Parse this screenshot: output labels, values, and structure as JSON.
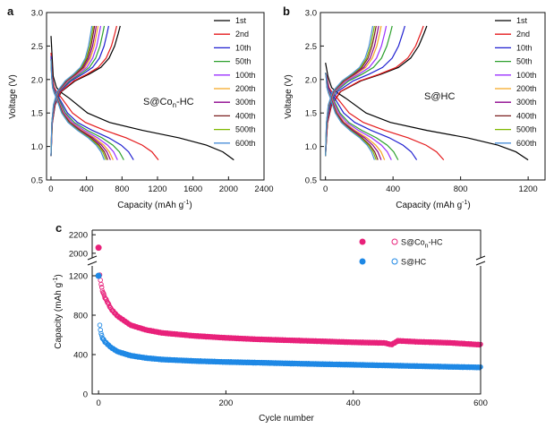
{
  "chart_data": [
    {
      "panel": "a",
      "type": "line",
      "annotation": "S@Co",
      "annotation_sub": "n",
      "annotation_tail": "-HC",
      "xlabel": "Capacity (mAh g",
      "xlabel_sup": "-1",
      "xlabel_tail": ")",
      "ylabel": "Voltage (V)",
      "xlim": [
        -50,
        2400
      ],
      "ylim": [
        0.5,
        3.0
      ],
      "xticks": [
        0,
        400,
        800,
        1200,
        1600,
        2000,
        2400
      ],
      "yticks": [
        0.5,
        1.0,
        1.5,
        2.0,
        2.5,
        3.0
      ],
      "series": [
        {
          "name": "1st",
          "color": "#000000",
          "discharge_capacity": 2060,
          "charge_capacity": 780,
          "initial_voltage": 2.65
        },
        {
          "name": "2nd",
          "color": "#e41a1c",
          "discharge_capacity": 1210,
          "charge_capacity": 740,
          "initial_voltage": 2.4
        },
        {
          "name": "10th",
          "color": "#1f1fd0",
          "discharge_capacity": 930,
          "charge_capacity": 650,
          "initial_voltage": 2.35
        },
        {
          "name": "50th",
          "color": "#2ca02c",
          "discharge_capacity": 820,
          "charge_capacity": 600,
          "initial_voltage": 2.3
        },
        {
          "name": "100th",
          "color": "#9b30ff",
          "discharge_capacity": 750,
          "charge_capacity": 560,
          "initial_voltage": 2.3
        },
        {
          "name": "200th",
          "color": "#f5a623",
          "discharge_capacity": 700,
          "charge_capacity": 530,
          "initial_voltage": 2.3
        },
        {
          "name": "300th",
          "color": "#8b008b",
          "discharge_capacity": 670,
          "charge_capacity": 510,
          "initial_voltage": 2.3
        },
        {
          "name": "400th",
          "color": "#7a1f1f",
          "discharge_capacity": 640,
          "charge_capacity": 490,
          "initial_voltage": 2.3
        },
        {
          "name": "500th",
          "color": "#7fb800",
          "discharge_capacity": 620,
          "charge_capacity": 475,
          "initial_voltage": 2.3
        },
        {
          "name": "600th",
          "color": "#4a8fd8",
          "discharge_capacity": 600,
          "charge_capacity": 460,
          "initial_voltage": 2.3
        }
      ]
    },
    {
      "panel": "b",
      "type": "line",
      "annotation": "S@HC",
      "xlabel": "Capacity (mAh g",
      "xlabel_sup": "-1",
      "xlabel_tail": ")",
      "ylabel": "Voltage (V)",
      "xlim": [
        -30,
        1300
      ],
      "ylim": [
        0.5,
        3.0
      ],
      "xticks": [
        0,
        400,
        800,
        1200
      ],
      "yticks": [
        0.5,
        1.0,
        1.5,
        2.0,
        2.5,
        3.0
      ],
      "series": [
        {
          "name": "1st",
          "color": "#000000",
          "discharge_capacity": 1200,
          "charge_capacity": 600,
          "initial_voltage": 2.25
        },
        {
          "name": "2nd",
          "color": "#e41a1c",
          "discharge_capacity": 700,
          "charge_capacity": 580,
          "initial_voltage": 2.1
        },
        {
          "name": "10th",
          "color": "#1f1fd0",
          "discharge_capacity": 540,
          "charge_capacity": 470,
          "initial_voltage": 2.1
        },
        {
          "name": "50th",
          "color": "#2ca02c",
          "discharge_capacity": 430,
          "charge_capacity": 395,
          "initial_voltage": 2.1
        },
        {
          "name": "100th",
          "color": "#9b30ff",
          "discharge_capacity": 390,
          "charge_capacity": 360,
          "initial_voltage": 2.1
        },
        {
          "name": "200th",
          "color": "#f5a623",
          "discharge_capacity": 350,
          "charge_capacity": 330,
          "initial_voltage": 2.1
        },
        {
          "name": "300th",
          "color": "#8b008b",
          "discharge_capacity": 330,
          "charge_capacity": 315,
          "initial_voltage": 2.1
        },
        {
          "name": "400th",
          "color": "#7a1f1f",
          "discharge_capacity": 310,
          "charge_capacity": 300,
          "initial_voltage": 2.1
        },
        {
          "name": "500th",
          "color": "#7fb800",
          "discharge_capacity": 300,
          "charge_capacity": 290,
          "initial_voltage": 2.1
        },
        {
          "name": "600th",
          "color": "#4a8fd8",
          "discharge_capacity": 290,
          "charge_capacity": 280,
          "initial_voltage": 2.1
        }
      ]
    },
    {
      "panel": "c",
      "type": "scatter",
      "xlabel": "Cycle number",
      "ylabel": "Capacity (mAh g",
      "ylabel_sup": "-1",
      "ylabel_tail": ")",
      "xlim": [
        -10,
        600
      ],
      "ylim_lower": [
        0,
        1300
      ],
      "ylim_upper": [
        1950,
        2250
      ],
      "xticks": [
        0,
        200,
        400,
        600
      ],
      "yticks_lower": [
        0,
        400,
        800,
        1200
      ],
      "yticks_upper": [
        2000,
        2200
      ],
      "series": [
        {
          "name": "S@Co",
          "name_sub": "n",
          "name_tail": "-HC",
          "color": "#e8217a",
          "first_cycle_capacity": 2060,
          "points": [
            [
              2,
              1210
            ],
            [
              4,
              1110
            ],
            [
              6,
              1050
            ],
            [
              10,
              980
            ],
            [
              20,
              860
            ],
            [
              30,
              790
            ],
            [
              50,
              700
            ],
            [
              75,
              650
            ],
            [
              100,
              620
            ],
            [
              150,
              590
            ],
            [
              200,
              570
            ],
            [
              250,
              555
            ],
            [
              300,
              545
            ],
            [
              350,
              535
            ],
            [
              400,
              525
            ],
            [
              450,
              518
            ],
            [
              460,
              500
            ],
            [
              470,
              540
            ],
            [
              500,
              530
            ],
            [
              550,
              520
            ],
            [
              600,
              500
            ]
          ]
        },
        {
          "name": "S@HC",
          "color": "#1e88e5",
          "first_cycle_capacity": 1200,
          "points": [
            [
              2,
              700
            ],
            [
              4,
              610
            ],
            [
              6,
              570
            ],
            [
              10,
              530
            ],
            [
              20,
              470
            ],
            [
              30,
              430
            ],
            [
              50,
              390
            ],
            [
              75,
              365
            ],
            [
              100,
              350
            ],
            [
              150,
              335
            ],
            [
              200,
              325
            ],
            [
              250,
              318
            ],
            [
              300,
              310
            ],
            [
              350,
              303
            ],
            [
              400,
              297
            ],
            [
              450,
              290
            ],
            [
              500,
              283
            ],
            [
              550,
              276
            ],
            [
              600,
              270
            ]
          ]
        }
      ]
    }
  ]
}
